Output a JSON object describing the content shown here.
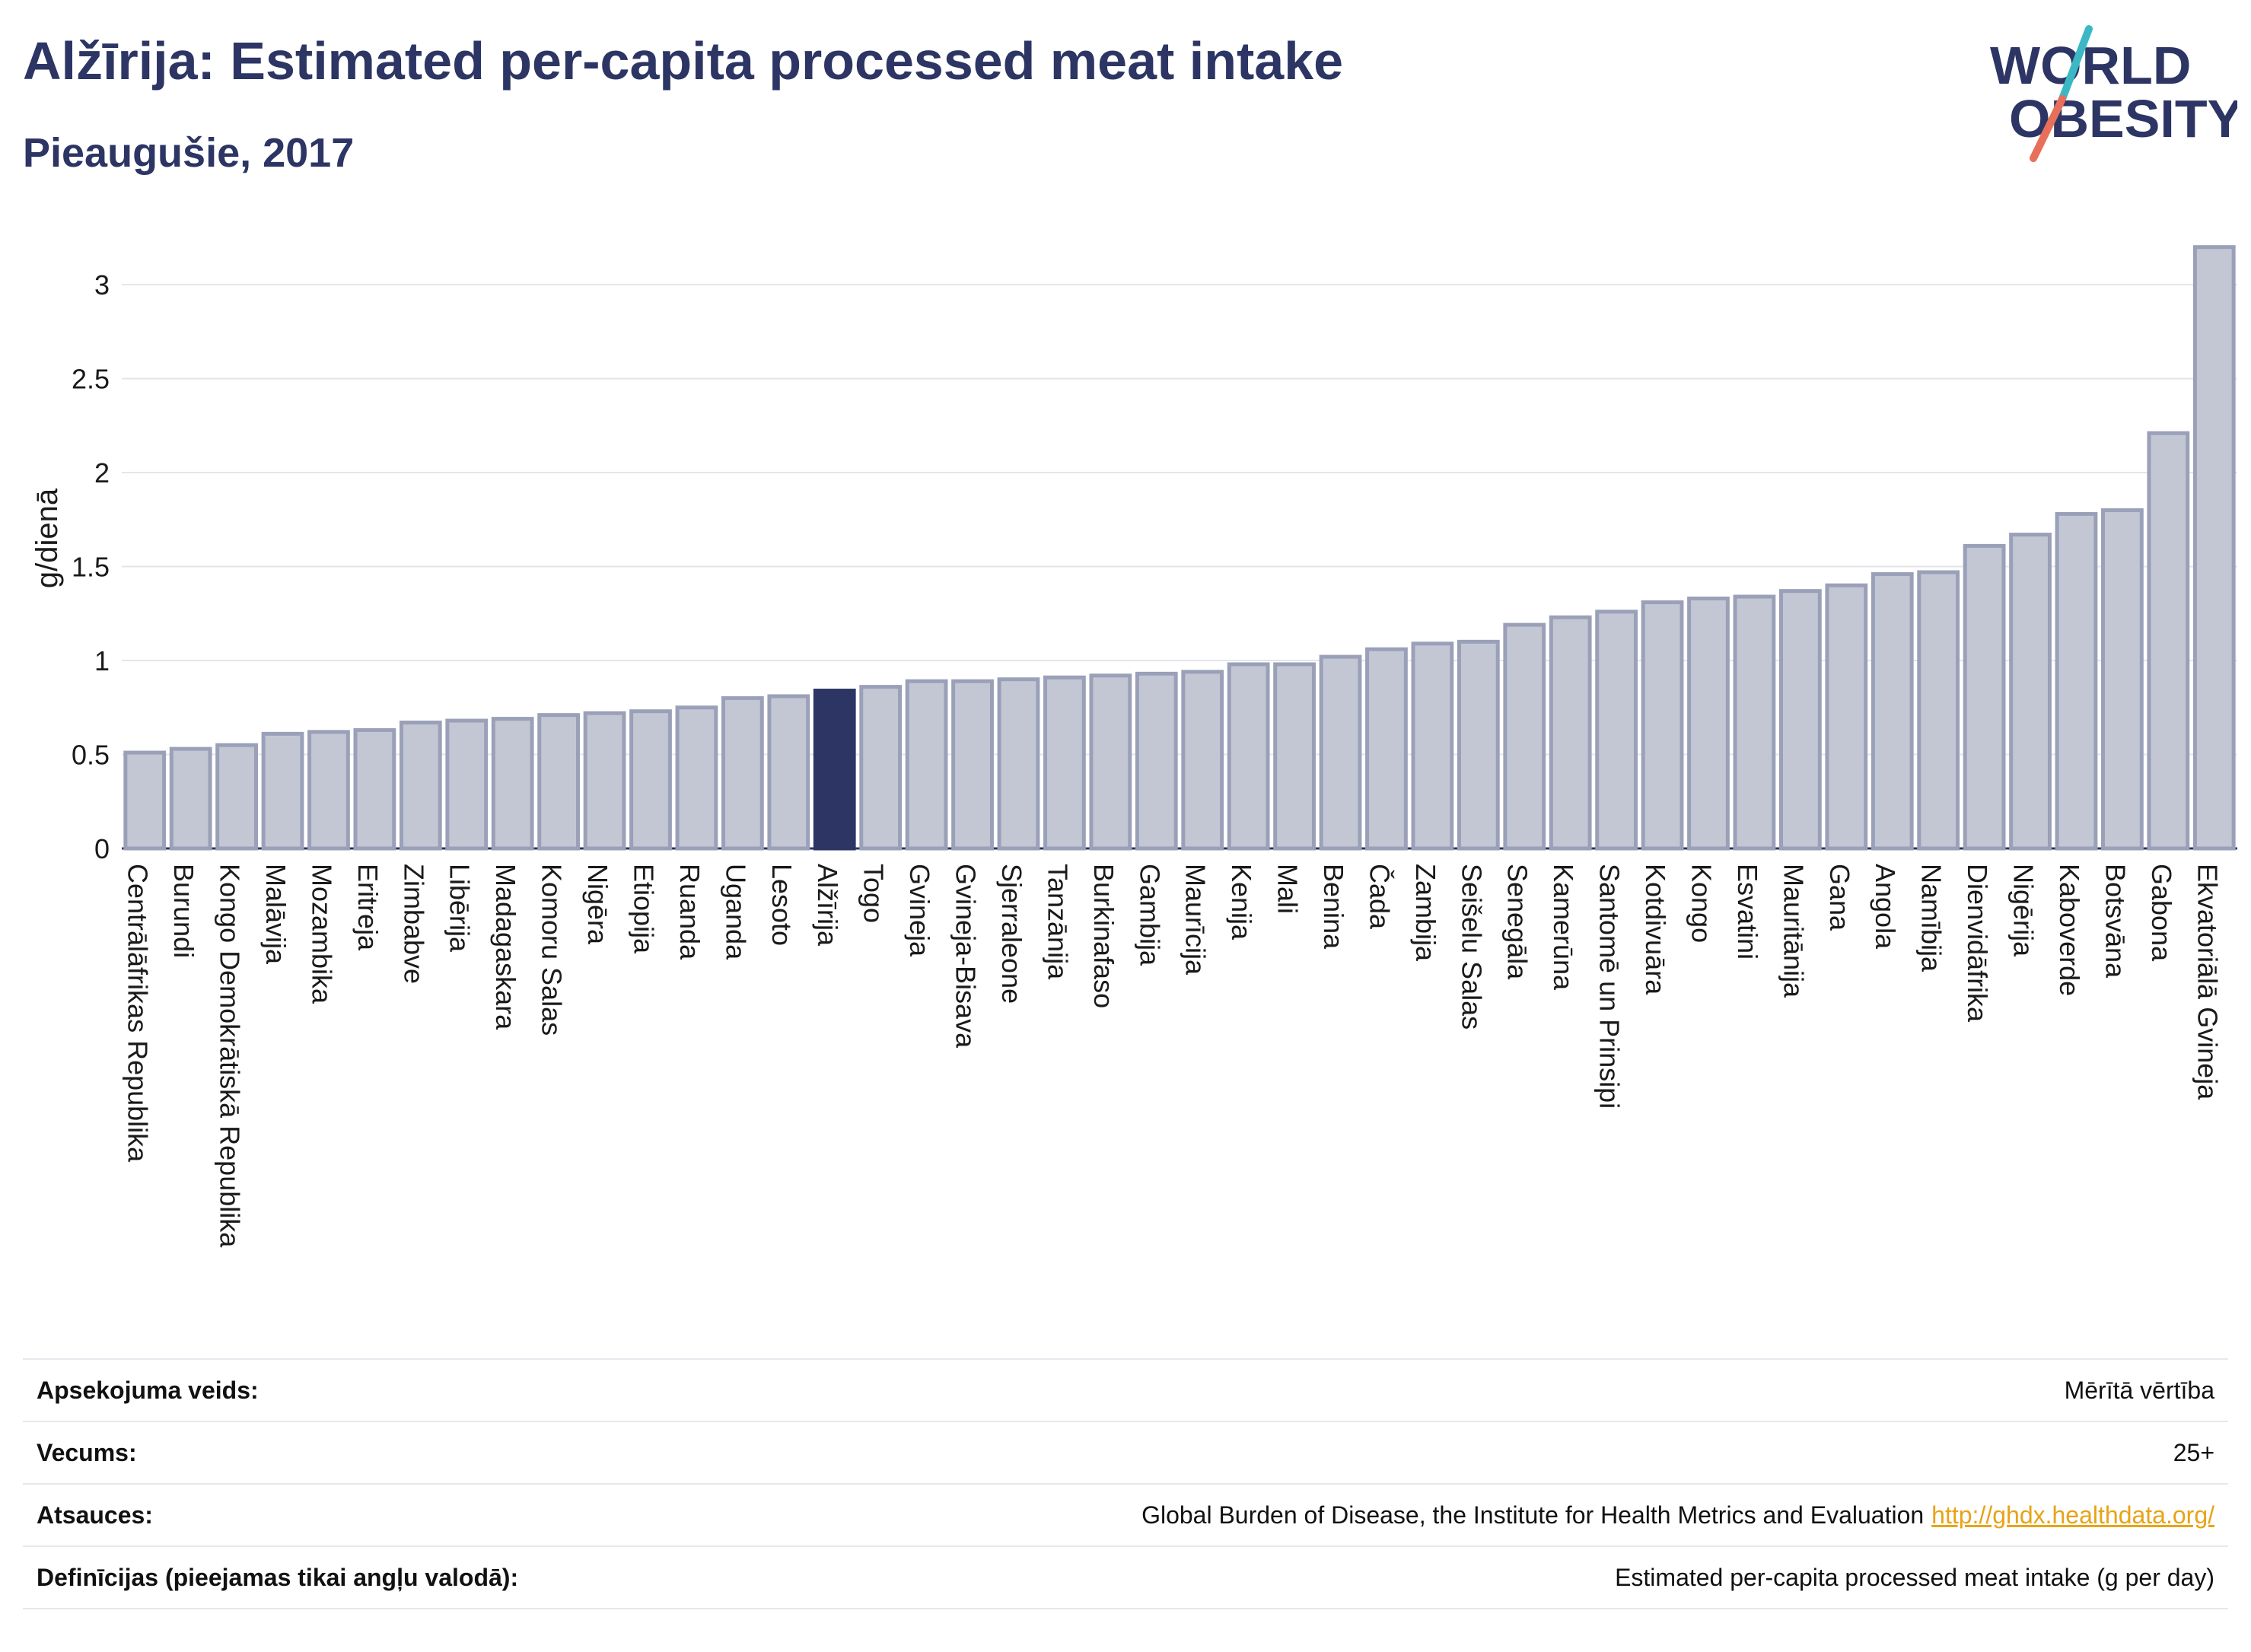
{
  "header": {
    "title": "Alžīrija: Estimated per-capita processed meat intake",
    "subtitle": "Pieaugušie, 2017"
  },
  "logo": {
    "line1": "WORLD",
    "line2": "OBESITY"
  },
  "colors": {
    "bar": "#c3c7d4",
    "bar_stroke": "#9aa0b8",
    "highlight": "#2c3563",
    "title": "#2c3563",
    "link": "#e8a317",
    "logo_teal": "#3bb8c4",
    "logo_coral": "#e8705a"
  },
  "chart_data": {
    "type": "bar",
    "ylabel": "g/dienā",
    "ylim": [
      0,
      3.3
    ],
    "yticks": [
      0,
      0.5,
      1,
      1.5,
      2,
      2.5,
      3
    ],
    "ytick_labels": [
      "0",
      "0.5",
      "1",
      "1.5",
      "2",
      "2.5",
      "3"
    ],
    "grid": true,
    "highlight": "Alžīrija",
    "categories": [
      "Centrālāfrikas Republika",
      "Burundi",
      "Kongo Demokrātiskā Republika",
      "Malāvija",
      "Mozambika",
      "Eritreja",
      "Zimbabve",
      "Libērija",
      "Madagaskara",
      "Komoru Salas",
      "Nigēra",
      "Etiopija",
      "Ruanda",
      "Uganda",
      "Lesoto",
      "Alžīrija",
      "Togo",
      "Gvineja",
      "Gvineja-Bisava",
      "Sjerraleone",
      "Tanzānija",
      "Burkinafaso",
      "Gambija",
      "Maurīcija",
      "Kenija",
      "Mali",
      "Benina",
      "Čada",
      "Zambija",
      "Seišelu Salas",
      "Senegāla",
      "Kamerūna",
      "Santomē un Prinsipi",
      "Kotdivuāra",
      "Kongo",
      "Esvatini",
      "Mauritānija",
      "Gana",
      "Angola",
      "Namībija",
      "Dienvidāfrika",
      "Nigērija",
      "Kaboverde",
      "Botsvāna",
      "Gabona",
      "Ekvatoriālā Gvineja"
    ],
    "values": [
      0.51,
      0.53,
      0.55,
      0.61,
      0.62,
      0.63,
      0.67,
      0.68,
      0.69,
      0.71,
      0.72,
      0.73,
      0.75,
      0.8,
      0.81,
      0.84,
      0.86,
      0.89,
      0.89,
      0.9,
      0.91,
      0.92,
      0.93,
      0.94,
      0.98,
      0.98,
      1.02,
      1.06,
      1.09,
      1.1,
      1.19,
      1.23,
      1.26,
      1.31,
      1.33,
      1.34,
      1.37,
      1.4,
      1.46,
      1.47,
      1.61,
      1.67,
      1.78,
      1.8,
      2.21,
      3.2
    ]
  },
  "info": {
    "rows": [
      {
        "label": "Apsekojuma veids:",
        "value": "Mērītā vērtība"
      },
      {
        "label": "Vecums:",
        "value": "25+"
      },
      {
        "label": "Atsauces:",
        "value": "Global Burden of Disease, the Institute for Health Metrics and Evaluation",
        "link": "http://ghdx.healthdata.org/"
      },
      {
        "label": "Definīcijas (pieejamas tikai angļu valodā):",
        "value": "Estimated per-capita processed meat intake (g per day)"
      }
    ]
  }
}
